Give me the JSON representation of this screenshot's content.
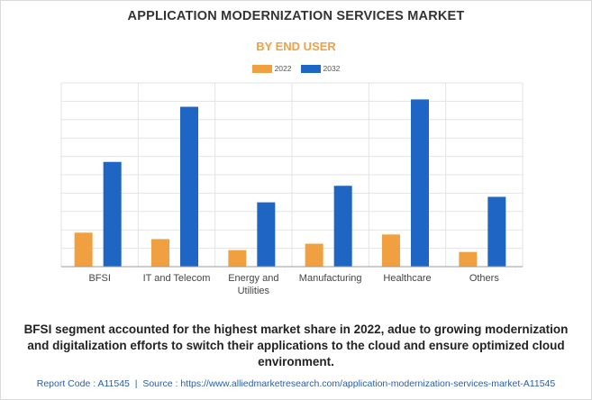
{
  "colors": {
    "series_2022": "#f0a040",
    "series_2032": "#1f66c4",
    "subtitle": "#f0a040",
    "grid": "#e3e3e3"
  },
  "title": "APPLICATION MODERNIZATION SERVICES MARKET",
  "subtitle": "BY END USER",
  "chart_data": {
    "type": "bar",
    "categories": [
      "BFSI",
      "IT and Telecom",
      "Energy and Utilities",
      "Manufacturing",
      "Healthcare",
      "Others"
    ],
    "category_lines": [
      [
        "BFSI"
      ],
      [
        "IT and Telecom"
      ],
      [
        "Energy and",
        "Utilities"
      ],
      [
        "Manufacturing"
      ],
      [
        "Healthcare"
      ],
      [
        "Others"
      ]
    ],
    "series": [
      {
        "name": "2022",
        "values": [
          1.85,
          1.5,
          0.9,
          1.25,
          1.75,
          0.8
        ]
      },
      {
        "name": "2032",
        "values": [
          5.7,
          8.7,
          3.5,
          4.4,
          9.1,
          3.8
        ]
      }
    ],
    "ylim": [
      0,
      10
    ],
    "grid": true,
    "legend": "top-center",
    "xlabel": "",
    "ylabel": ""
  },
  "caption": "BFSI segment accounted for the highest market share in 2022, adue to growing modernization and digitalization efforts to switch their applications to the cloud and ensure optimized cloud environment.",
  "footer": {
    "report_code": "Report Code : A11545",
    "separator": "|",
    "source": "Source : https://www.alliedmarketresearch.com/application-modernization-services-market-A11545"
  }
}
